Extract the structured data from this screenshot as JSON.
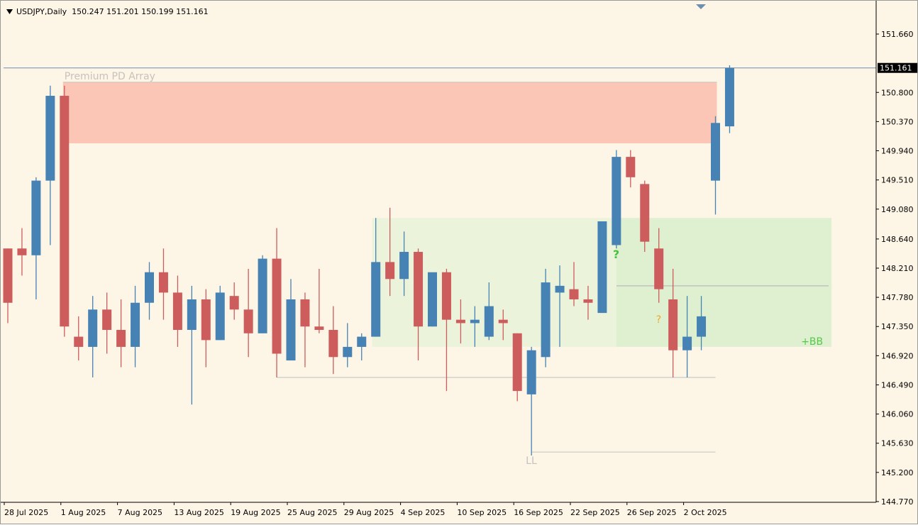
{
  "header": {
    "dropdown_icon": "triangle-down-icon",
    "title": "USDJPY,Daily  150.247 151.201 150.199 151.161"
  },
  "colors": {
    "background": "#fdf5e6",
    "bull": "#4682b4",
    "bear": "#cd5c5c",
    "premium_zone": "#fbc6b5",
    "bb_zone": "#dff0d0",
    "price_line": "#6e8fb0",
    "price_label_bg": "#000000"
  },
  "chart_data": {
    "type": "candlestick",
    "symbol": "USDJPY",
    "timeframe": "Daily",
    "ohlc_header": {
      "open": 150.247,
      "high": 151.201,
      "low": 150.199,
      "close": 151.161
    },
    "current_price_label": "151.161",
    "y_ticks": [
      "151.660",
      "150.800",
      "150.370",
      "149.940",
      "149.510",
      "149.080",
      "148.640",
      "148.210",
      "147.780",
      "147.350",
      "146.920",
      "146.490",
      "146.060",
      "145.630",
      "145.200",
      "144.770"
    ],
    "x_tick_labels": [
      {
        "label": "28 Jul 2025",
        "index": 0
      },
      {
        "label": "1 Aug 2025",
        "index": 4
      },
      {
        "label": "7 Aug 2025",
        "index": 8
      },
      {
        "label": "13 Aug 2025",
        "index": 12
      },
      {
        "label": "19 Aug 2025",
        "index": 16
      },
      {
        "label": "25 Aug 2025",
        "index": 20
      },
      {
        "label": "29 Aug 2025",
        "index": 24
      },
      {
        "label": "4 Sep 2025",
        "index": 28
      },
      {
        "label": "10 Sep 2025",
        "index": 32
      },
      {
        "label": "16 Sep 2025",
        "index": 36
      },
      {
        "label": "22 Sep 2025",
        "index": 40
      },
      {
        "label": "26 Sep 2025",
        "index": 44
      },
      {
        "label": "2 Oct 2025",
        "index": 48
      }
    ],
    "candles": [
      [
        148.5,
        148.5,
        147.4,
        147.7
      ],
      [
        148.5,
        148.8,
        148.1,
        148.4
      ],
      [
        148.4,
        149.55,
        147.75,
        149.5
      ],
      [
        149.5,
        150.9,
        148.55,
        150.75
      ],
      [
        150.75,
        150.9,
        147.2,
        147.35
      ],
      [
        147.2,
        147.5,
        146.85,
        147.05
      ],
      [
        147.05,
        147.8,
        146.6,
        147.6
      ],
      [
        147.6,
        147.85,
        146.95,
        147.3
      ],
      [
        147.3,
        147.75,
        146.75,
        147.05
      ],
      [
        147.05,
        147.95,
        146.75,
        147.7
      ],
      [
        147.7,
        148.3,
        147.45,
        148.15
      ],
      [
        148.15,
        148.5,
        147.45,
        147.85
      ],
      [
        147.85,
        148.1,
        147.05,
        147.3
      ],
      [
        147.3,
        147.95,
        146.2,
        147.75
      ],
      [
        147.75,
        147.9,
        146.75,
        147.15
      ],
      [
        147.15,
        147.95,
        147.15,
        147.85
      ],
      [
        147.8,
        148.0,
        147.45,
        147.6
      ],
      [
        147.6,
        148.2,
        146.9,
        147.25
      ],
      [
        147.25,
        148.4,
        147.25,
        148.35
      ],
      [
        148.35,
        148.8,
        146.6,
        146.95
      ],
      [
        146.85,
        148.05,
        146.85,
        147.75
      ],
      [
        147.75,
        147.85,
        146.75,
        147.35
      ],
      [
        147.35,
        148.2,
        147.25,
        147.3
      ],
      [
        147.3,
        147.65,
        146.65,
        146.9
      ],
      [
        146.9,
        147.4,
        146.75,
        147.05
      ],
      [
        147.05,
        147.25,
        146.85,
        147.2
      ],
      [
        147.2,
        148.95,
        147.2,
        148.3
      ],
      [
        148.3,
        149.1,
        147.8,
        148.05
      ],
      [
        148.05,
        148.75,
        147.8,
        148.45
      ],
      [
        148.45,
        148.5,
        146.85,
        147.35
      ],
      [
        147.35,
        148.1,
        147.35,
        148.15
      ],
      [
        148.15,
        148.2,
        146.4,
        147.45
      ],
      [
        147.45,
        147.75,
        147.1,
        147.4
      ],
      [
        147.4,
        147.65,
        147.05,
        147.45
      ],
      [
        147.2,
        148.0,
        147.15,
        147.65
      ],
      [
        147.45,
        147.6,
        147.15,
        147.4
      ],
      [
        147.25,
        147.25,
        146.25,
        146.4
      ],
      [
        146.35,
        147.05,
        145.45,
        147.0
      ],
      [
        146.9,
        148.2,
        146.75,
        148.0
      ],
      [
        147.85,
        148.25,
        147.05,
        147.95
      ],
      [
        147.9,
        148.3,
        147.65,
        147.75
      ],
      [
        147.75,
        147.95,
        147.45,
        147.7
      ],
      [
        147.55,
        148.9,
        147.55,
        148.9
      ],
      [
        148.55,
        149.95,
        148.5,
        149.85
      ],
      [
        149.85,
        149.95,
        149.4,
        149.55
      ],
      [
        149.45,
        149.5,
        148.45,
        148.6
      ],
      [
        148.5,
        148.8,
        147.7,
        147.9
      ],
      [
        147.75,
        148.2,
        146.6,
        147.0
      ],
      [
        147.0,
        147.8,
        146.6,
        147.2
      ],
      [
        147.2,
        147.8,
        147.0,
        147.5
      ],
      [
        149.5,
        150.45,
        149.0,
        150.35
      ],
      [
        150.3,
        151.2,
        150.2,
        151.16
      ]
    ],
    "annotations": {
      "premium_zone_label": "Premium PD Array",
      "bb_label": "+BB",
      "ll_label": "LL",
      "question_green": "?",
      "question_orange": "?"
    },
    "zones": {
      "premium": {
        "top": 150.95,
        "bottom": 150.05,
        "from": 4,
        "to": 50
      },
      "bb_light": {
        "top": 148.95,
        "bottom": 147.05,
        "from": 26,
        "to": 43
      },
      "bb_dark": {
        "top": 148.95,
        "bottom": 147.05,
        "from": 43,
        "to": 58
      }
    },
    "levels": {
      "current": 151.161,
      "inner_level": 147.95,
      "lower_support": 146.6,
      "ll": 145.5
    },
    "grid": false
  }
}
